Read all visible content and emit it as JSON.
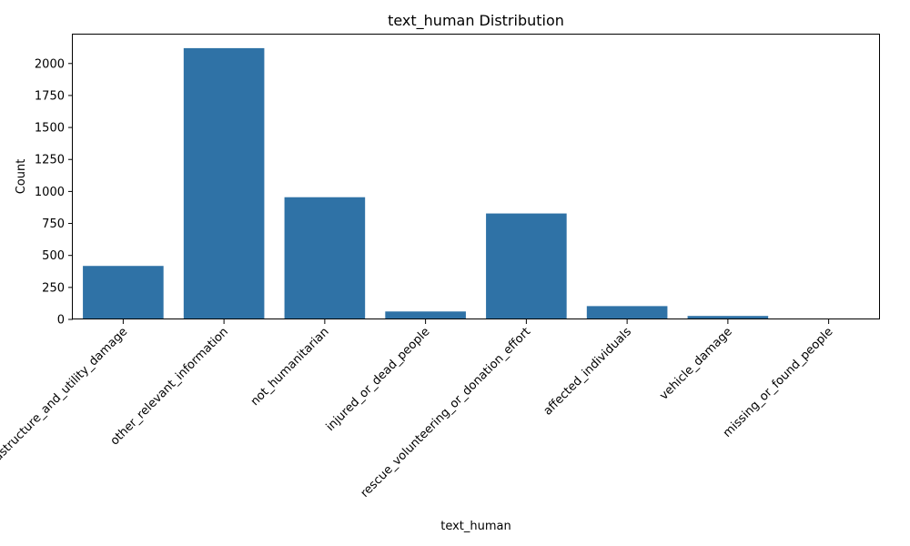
{
  "chart_data": {
    "type": "bar",
    "title": "text_human Distribution",
    "xlabel": "text_human",
    "ylabel": "Count",
    "categories": [
      "infrastructure_and_utility_damage",
      "other_relevant_information",
      "not_humanitarian",
      "injured_or_dead_people",
      "rescue_volunteering_or_donation_effort",
      "affected_individuals",
      "vehicle_damage",
      "missing_or_found_people"
    ],
    "values": [
      418,
      2120,
      955,
      62,
      828,
      104,
      27,
      5
    ],
    "ylim": [
      0,
      2226
    ],
    "yticks": [
      0,
      250,
      500,
      750,
      1000,
      1250,
      1500,
      1750,
      2000
    ],
    "grid": false,
    "bar_color": "#2f72a6"
  }
}
